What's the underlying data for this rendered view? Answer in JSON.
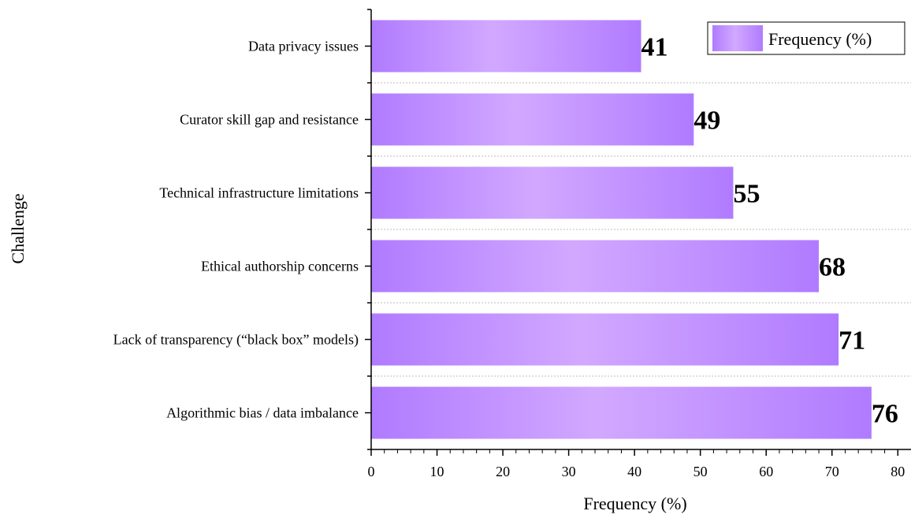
{
  "chart_data": {
    "type": "bar",
    "orientation": "horizontal",
    "categories": [
      "Data privacy issues",
      "Curator skill gap and resistance",
      "Technical infrastructure limitations",
      "Ethical authorship concerns",
      "Lack of transparency (“black box” models)",
      "Algorithmic bias / data imbalance"
    ],
    "series": [
      {
        "name": "Frequency (%)",
        "values": [
          41,
          49,
          55,
          68,
          71,
          76
        ]
      }
    ],
    "xlabel": "Frequency (%)",
    "ylabel": "Challenge",
    "xlim": [
      0,
      82
    ],
    "xticks": [
      "0",
      "10",
      "20",
      "30",
      "40",
      "50",
      "60",
      "70",
      "80"
    ],
    "grid": "horizontal dotted separators",
    "legend": "top-right",
    "colors": {
      "bar_edge": "#b07bff",
      "bar_center": "#d2a8ff"
    }
  }
}
